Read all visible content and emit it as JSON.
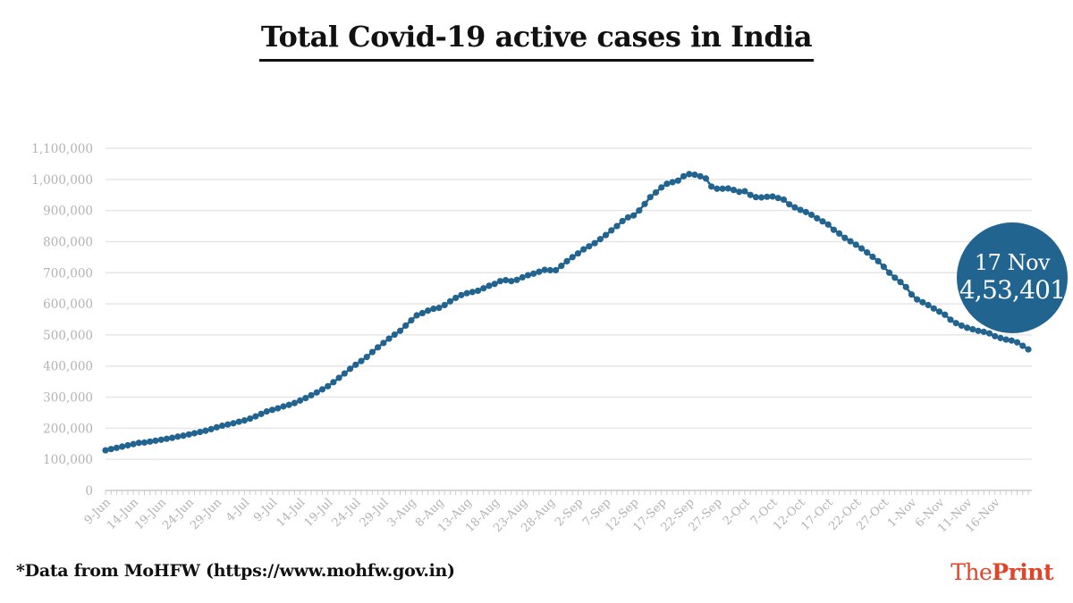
{
  "header": {
    "title": "Total Covid-19 active cases in India"
  },
  "footer": {
    "source_note": "*Data from MoHFW (https://www.mohfw.gov.in)",
    "logo_prefix": "The",
    "logo_suffix": "Print"
  },
  "callout": {
    "date": "17 Nov",
    "value": "4,53,401"
  },
  "colors": {
    "series": "#21648f",
    "grid": "#e6e6e6",
    "tick": "#b3b3b3"
  },
  "chart_data": {
    "type": "line",
    "title": "Total Covid-19 active cases in India",
    "xlabel": "",
    "ylabel": "",
    "ylim": [
      0,
      1100000
    ],
    "yticks": [
      0,
      100000,
      200000,
      300000,
      400000,
      500000,
      600000,
      700000,
      800000,
      900000,
      1000000,
      1100000
    ],
    "ytick_labels": [
      "0",
      "100,000",
      "200,000",
      "300,000",
      "400,000",
      "500,000",
      "600,000",
      "700,000",
      "800,000",
      "900,000",
      "1,000,000",
      "1,100,000"
    ],
    "x_tick_labels": [
      "9-Jun",
      "14-Jun",
      "19-Jun",
      "24-Jun",
      "29-Jun",
      "4-Jul",
      "9-Jul",
      "14-Jul",
      "19-Jul",
      "24-Jul",
      "29-Jul",
      "3-Aug",
      "8-Aug",
      "13-Aug",
      "18-Aug",
      "23-Aug",
      "28-Aug",
      "2-Sep",
      "7-Sep",
      "12-Sep",
      "17-Sep",
      "22-Sep",
      "27-Sep",
      "2-Oct",
      "7-Oct",
      "12-Oct",
      "17-Oct",
      "22-Oct",
      "27-Oct",
      "1-Nov",
      "6-Nov",
      "11-Nov",
      "16-Nov"
    ],
    "x_start": "9-Jun",
    "x_end": "17-Nov",
    "series": [
      {
        "name": "Active cases",
        "values": [
          129000,
          133000,
          137000,
          141000,
          145000,
          149000,
          153000,
          154000,
          157000,
          160000,
          163000,
          166000,
          169000,
          173000,
          176000,
          180000,
          184000,
          188000,
          192000,
          197000,
          203000,
          208000,
          212000,
          216000,
          221000,
          225000,
          231000,
          238000,
          246000,
          254000,
          259000,
          264000,
          270000,
          275000,
          281000,
          289000,
          297000,
          306000,
          315000,
          325000,
          335000,
          348000,
          362000,
          376000,
          391000,
          404000,
          416000,
          429000,
          445000,
          460000,
          474000,
          488000,
          501000,
          513000,
          530000,
          547000,
          563000,
          570000,
          578000,
          584000,
          587000,
          596000,
          608000,
          619000,
          628000,
          634000,
          638000,
          642000,
          650000,
          658000,
          664000,
          673000,
          676000,
          673000,
          677000,
          685000,
          692000,
          697000,
          703000,
          709000,
          708000,
          708000,
          722000,
          737000,
          750000,
          762000,
          775000,
          785000,
          795000,
          808000,
          821000,
          836000,
          850000,
          866000,
          878000,
          884000,
          900000,
          921000,
          943000,
          958000,
          974000,
          986000,
          991000,
          996000,
          1010000,
          1017000,
          1015000,
          1010000,
          1003000,
          977000,
          970000,
          970000,
          971000,
          966000,
          960000,
          962000,
          950000,
          943000,
          942000,
          944000,
          945000,
          940000,
          935000,
          920000,
          910000,
          902000,
          895000,
          886000,
          875000,
          865000,
          855000,
          838000,
          826000,
          812000,
          801000,
          790000,
          778000,
          765000,
          751000,
          737000,
          719000,
          700000,
          684000,
          670000,
          654000,
          630000,
          614000,
          605000,
          596000,
          585000,
          575000,
          565000,
          549000,
          538000,
          530000,
          523000,
          518000,
          513000,
          510000,
          505000,
          496000,
          490000,
          485000,
          482000,
          476000,
          465000,
          453401
        ]
      }
    ]
  }
}
